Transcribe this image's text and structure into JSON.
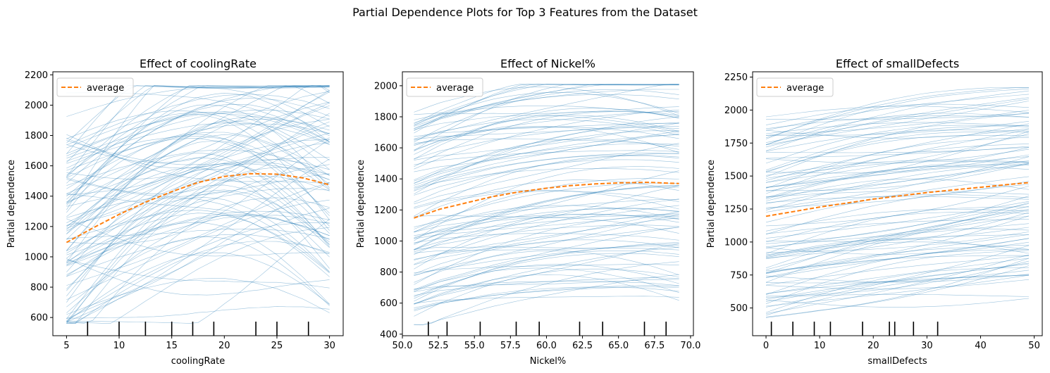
{
  "figure": {
    "suptitle": "Partial Dependence Plots for Top 3 Features from the Dataset"
  },
  "colors": {
    "ice_line": "#1f77b4",
    "average_line": "#ff7f0e",
    "rug": "#000000",
    "axes": "#000000",
    "background": "#ffffff"
  },
  "chart_data": [
    {
      "type": "line",
      "title": "Effect of coolingRate",
      "xlabel": "coolingRate",
      "ylabel": "Partial dependence",
      "xlim": [
        3.7,
        31.3
      ],
      "ylim": [
        480,
        2220
      ],
      "xticks": [
        5,
        10,
        15,
        20,
        25,
        30
      ],
      "xtick_labels": [
        "5",
        "10",
        "15",
        "20",
        "25",
        "30"
      ],
      "yticks": [
        600,
        800,
        1000,
        1200,
        1400,
        1600,
        1800,
        2000,
        2200
      ],
      "ytick_labels": [
        "600",
        "800",
        "1000",
        "1200",
        "1400",
        "1600",
        "1800",
        "2000",
        "2200"
      ],
      "legend": {
        "entries": [
          "average"
        ],
        "position": "upper-left"
      },
      "series": [
        {
          "name": "average",
          "style": "dashed",
          "x": [
            5,
            7.5,
            10,
            12.5,
            15,
            17.5,
            20,
            22.5,
            25,
            27.5,
            30
          ],
          "y": [
            1095,
            1190,
            1280,
            1360,
            1430,
            1490,
            1530,
            1548,
            1545,
            1520,
            1475
          ]
        }
      ],
      "ice_lines": {
        "count": 100,
        "description_min": 560,
        "description_max": 2130
      },
      "rug_x": [
        7,
        10,
        12.5,
        15,
        17,
        19,
        23,
        25,
        28
      ]
    },
    {
      "type": "line",
      "title": "Effect of Nickel%",
      "xlabel": "Nickel%",
      "ylabel": "Partial dependence",
      "xlim": [
        50.0,
        70.2
      ],
      "ylim": [
        390,
        2090
      ],
      "xticks": [
        50.0,
        52.5,
        55.0,
        57.5,
        60.0,
        62.5,
        65.0,
        67.5,
        70.0
      ],
      "xtick_labels": [
        "50.0",
        "52.5",
        "55.0",
        "57.5",
        "60.0",
        "62.5",
        "65.0",
        "67.5",
        "70.0"
      ],
      "yticks": [
        400,
        600,
        800,
        1000,
        1200,
        1400,
        1600,
        1800,
        2000
      ],
      "ytick_labels": [
        "400",
        "600",
        "800",
        "1000",
        "1200",
        "1400",
        "1600",
        "1800",
        "2000"
      ],
      "legend": {
        "entries": [
          "average"
        ],
        "position": "upper-left"
      },
      "series": [
        {
          "name": "average",
          "style": "dashed",
          "x": [
            50.8,
            52.6,
            54.4,
            56.2,
            58.0,
            59.8,
            61.6,
            63.4,
            65.2,
            67.0,
            69.2
          ],
          "y": [
            1148,
            1205,
            1245,
            1285,
            1315,
            1338,
            1356,
            1368,
            1375,
            1378,
            1370
          ]
        }
      ],
      "ice_lines": {
        "count": 100,
        "description_min": 460,
        "description_max": 2010
      },
      "rug_x": [
        51.8,
        53.1,
        55.4,
        57.9,
        59.5,
        62.3,
        63.9,
        66.8,
        68.3
      ]
    },
    {
      "type": "line",
      "title": "Effect of smallDefects",
      "xlabel": "smallDefects",
      "ylabel": "Partial dependence",
      "xlim": [
        -2.5,
        51.5
      ],
      "ylim": [
        290,
        2290
      ],
      "xticks": [
        0,
        10,
        20,
        30,
        40,
        50
      ],
      "xtick_labels": [
        "0",
        "10",
        "20",
        "30",
        "40",
        "50"
      ],
      "yticks": [
        500,
        750,
        1000,
        1250,
        1500,
        1750,
        2000,
        2250
      ],
      "ytick_labels": [
        "500",
        "750",
        "1000",
        "1250",
        "1500",
        "1750",
        "2000",
        "2250"
      ],
      "legend": {
        "entries": [
          "average"
        ],
        "position": "upper-left"
      },
      "series": [
        {
          "name": "average",
          "style": "dashed",
          "x": [
            0,
            5,
            10,
            15,
            20,
            25,
            30,
            35,
            40,
            45,
            49
          ],
          "y": [
            1195,
            1230,
            1265,
            1295,
            1325,
            1350,
            1375,
            1395,
            1415,
            1435,
            1450
          ]
        }
      ],
      "ice_lines": {
        "count": 100,
        "description_min": 390,
        "description_max": 2170
      },
      "rug_x": [
        1,
        5,
        9,
        12,
        18,
        23,
        24,
        27.5,
        32
      ]
    }
  ]
}
